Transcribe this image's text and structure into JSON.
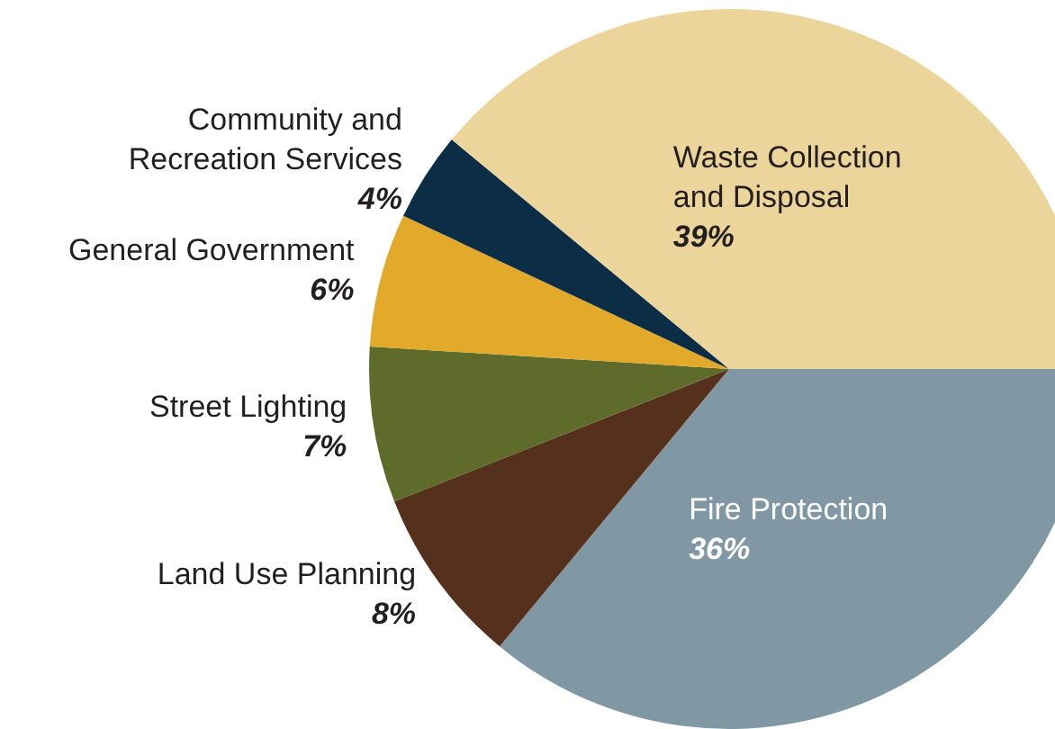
{
  "chart_data": {
    "type": "pie",
    "categories": [
      "Fire Protection",
      "Land Use Planning",
      "Street Lighting",
      "General Government",
      "Community and Recreation Services",
      "Waste Collection and Disposal"
    ],
    "values": [
      36,
      8,
      7,
      6,
      4,
      39
    ],
    "value_labels": [
      "36%",
      "8%",
      "7%",
      "6%",
      "4%",
      "39%"
    ],
    "colors": [
      "#7f98a3",
      "#55301d",
      "#5e6b2a",
      "#e3a92a",
      "#0b2d45",
      "#ecd59b"
    ]
  }
}
